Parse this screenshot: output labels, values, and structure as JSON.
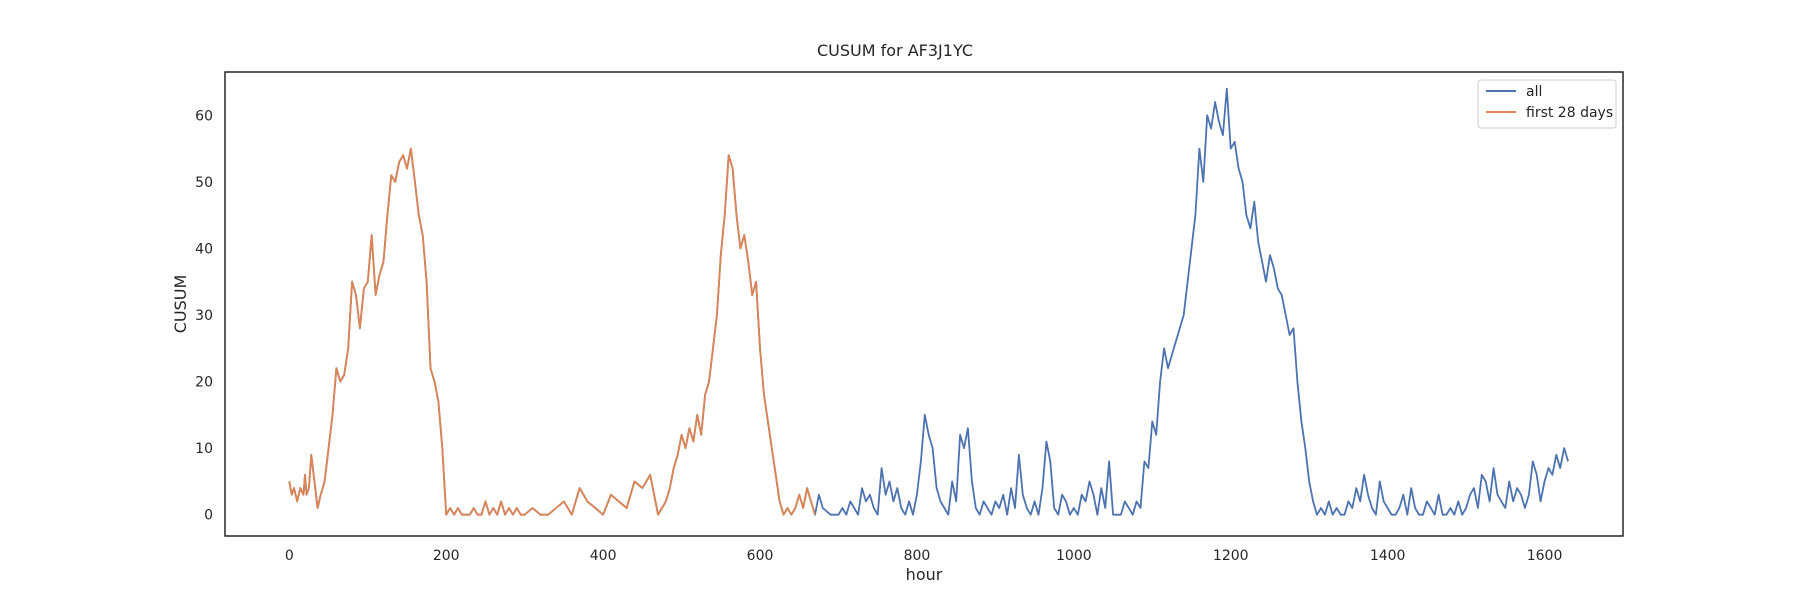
{
  "chart_data": {
    "type": "line",
    "title": "CUSUM for AF3J1YC",
    "xlabel": "hour",
    "ylabel": "CUSUM",
    "xlim": [
      -82,
      1700
    ],
    "ylim": [
      -3.2,
      66.5
    ],
    "xticks": [
      0,
      200,
      400,
      600,
      800,
      1000,
      1200,
      1400,
      1600
    ],
    "yticks": [
      0,
      10,
      20,
      30,
      40,
      50,
      60
    ],
    "grid": false,
    "legend": {
      "location": "top-right"
    },
    "series": [
      {
        "name": "all",
        "color": "#4c72b0",
        "x": [
          0,
          3,
          6,
          10,
          14,
          18,
          20,
          22,
          25,
          28,
          32,
          36,
          40,
          45,
          50,
          55,
          60,
          65,
          70,
          75,
          80,
          85,
          90,
          95,
          100,
          105,
          110,
          115,
          120,
          125,
          130,
          135,
          140,
          145,
          150,
          155,
          160,
          165,
          170,
          175,
          180,
          185,
          190,
          195,
          200,
          205,
          210,
          215,
          220,
          225,
          230,
          235,
          240,
          245,
          250,
          255,
          260,
          265,
          270,
          275,
          280,
          285,
          290,
          295,
          300,
          310,
          320,
          330,
          340,
          350,
          360,
          370,
          380,
          390,
          400,
          410,
          420,
          430,
          440,
          450,
          460,
          465,
          470,
          475,
          480,
          485,
          490,
          495,
          500,
          505,
          510,
          515,
          520,
          525,
          530,
          535,
          540,
          545,
          550,
          555,
          560,
          565,
          570,
          575,
          580,
          585,
          590,
          595,
          600,
          605,
          610,
          615,
          620,
          625,
          630,
          635,
          640,
          645,
          650,
          655,
          660,
          665,
          670,
          675,
          680,
          690,
          700,
          705,
          710,
          715,
          720,
          725,
          730,
          735,
          740,
          745,
          750,
          755,
          760,
          765,
          770,
          775,
          780,
          785,
          790,
          795,
          800,
          805,
          810,
          815,
          820,
          825,
          830,
          835,
          840,
          845,
          850,
          855,
          860,
          865,
          870,
          875,
          880,
          885,
          890,
          895,
          900,
          905,
          910,
          915,
          920,
          925,
          930,
          935,
          940,
          945,
          950,
          955,
          960,
          965,
          970,
          975,
          980,
          985,
          990,
          995,
          1000,
          1005,
          1010,
          1015,
          1020,
          1025,
          1030,
          1035,
          1040,
          1045,
          1050,
          1055,
          1060,
          1065,
          1070,
          1075,
          1080,
          1085,
          1090,
          1095,
          1100,
          1105,
          1110,
          1115,
          1120,
          1125,
          1130,
          1135,
          1140,
          1145,
          1150,
          1155,
          1160,
          1165,
          1170,
          1175,
          1180,
          1185,
          1190,
          1195,
          1200,
          1205,
          1210,
          1215,
          1220,
          1225,
          1230,
          1235,
          1240,
          1245,
          1250,
          1255,
          1260,
          1265,
          1270,
          1275,
          1280,
          1285,
          1290,
          1295,
          1300,
          1305,
          1310,
          1315,
          1320,
          1325,
          1330,
          1335,
          1340,
          1345,
          1350,
          1355,
          1360,
          1365,
          1370,
          1375,
          1380,
          1385,
          1390,
          1395,
          1400,
          1405,
          1410,
          1415,
          1420,
          1425,
          1430,
          1435,
          1440,
          1445,
          1450,
          1455,
          1460,
          1465,
          1470,
          1475,
          1480,
          1485,
          1490,
          1495,
          1500,
          1505,
          1510,
          1515,
          1520,
          1525,
          1530,
          1535,
          1540,
          1545,
          1550,
          1555,
          1560,
          1565,
          1570,
          1575,
          1580,
          1585,
          1590,
          1595,
          1600,
          1605,
          1610,
          1615,
          1620,
          1625,
          1630
        ],
        "y": [
          5,
          3,
          4,
          2,
          4,
          3,
          6,
          3,
          4,
          9,
          5,
          1,
          3,
          5,
          10,
          15,
          22,
          20,
          21,
          25,
          35,
          33,
          28,
          34,
          35,
          42,
          33,
          36,
          38,
          45,
          51,
          50,
          53,
          54,
          52,
          55,
          50,
          45,
          42,
          35,
          22,
          20,
          17,
          10,
          0,
          1,
          0,
          1,
          0,
          0,
          0,
          1,
          0,
          0,
          2,
          0,
          1,
          0,
          2,
          0,
          1,
          0,
          1,
          0,
          0,
          1,
          0,
          0,
          1,
          2,
          0,
          4,
          2,
          1,
          0,
          3,
          2,
          1,
          5,
          4,
          6,
          3,
          0,
          1,
          2,
          4,
          7,
          9,
          12,
          10,
          13,
          11,
          15,
          12,
          18,
          20,
          25,
          30,
          39,
          45,
          54,
          52,
          45,
          40,
          42,
          38,
          33,
          35,
          25,
          18,
          14,
          10,
          6,
          2,
          0,
          1,
          0,
          1,
          3,
          1,
          4,
          2,
          0,
          3,
          1,
          0,
          0,
          1,
          0,
          2,
          1,
          0,
          4,
          2,
          3,
          1,
          0,
          7,
          3,
          5,
          2,
          4,
          1,
          0,
          2,
          0,
          3,
          8,
          15,
          12,
          10,
          4,
          2,
          1,
          0,
          5,
          2,
          12,
          10,
          13,
          5,
          1,
          0,
          2,
          1,
          0,
          2,
          1,
          3,
          0,
          4,
          1,
          9,
          3,
          1,
          0,
          2,
          0,
          4,
          11,
          8,
          1,
          0,
          3,
          2,
          0,
          1,
          0,
          3,
          2,
          5,
          3,
          0,
          4,
          1,
          8,
          0,
          0,
          0,
          2,
          1,
          0,
          2,
          1,
          8,
          7,
          14,
          12,
          20,
          25,
          22,
          24,
          26,
          28,
          30,
          35,
          40,
          45,
          55,
          50,
          60,
          58,
          62,
          59,
          57,
          64,
          55,
          56,
          52,
          50,
          45,
          43,
          47,
          41,
          38,
          35,
          39,
          37,
          34,
          33,
          30,
          27,
          28,
          20,
          14,
          10,
          5,
          2,
          0,
          1,
          0,
          2,
          0,
          1,
          0,
          0,
          2,
          1,
          4,
          2,
          6,
          3,
          1,
          0,
          5,
          2,
          1,
          0,
          0,
          1,
          3,
          0,
          4,
          1,
          0,
          0,
          2,
          1,
          0,
          3,
          0,
          0,
          1,
          0,
          2,
          0,
          1,
          3,
          4,
          1,
          6,
          5,
          2,
          7,
          3,
          2,
          1,
          5,
          2,
          4,
          3,
          1,
          3,
          8,
          6,
          2,
          5,
          7,
          6,
          9,
          7,
          10,
          8
        ]
      },
      {
        "name": "first 28 days",
        "color": "#dd8452",
        "x": [
          0,
          3,
          6,
          10,
          14,
          18,
          20,
          22,
          25,
          28,
          32,
          36,
          40,
          45,
          50,
          55,
          60,
          65,
          70,
          75,
          80,
          85,
          90,
          95,
          100,
          105,
          110,
          115,
          120,
          125,
          130,
          135,
          140,
          145,
          150,
          155,
          160,
          165,
          170,
          175,
          180,
          185,
          190,
          195,
          200,
          205,
          210,
          215,
          220,
          225,
          230,
          235,
          240,
          245,
          250,
          255,
          260,
          265,
          270,
          275,
          280,
          285,
          290,
          295,
          300,
          310,
          320,
          330,
          340,
          350,
          360,
          370,
          380,
          390,
          400,
          410,
          420,
          430,
          440,
          450,
          460,
          465,
          470,
          475,
          480,
          485,
          490,
          495,
          500,
          505,
          510,
          515,
          520,
          525,
          530,
          535,
          540,
          545,
          550,
          555,
          560,
          565,
          570,
          575,
          580,
          585,
          590,
          595,
          600,
          605,
          610,
          615,
          620,
          625,
          630,
          635,
          640,
          645,
          650,
          655,
          660,
          665,
          670
        ],
        "y": [
          5,
          3,
          4,
          2,
          4,
          3,
          6,
          3,
          4,
          9,
          5,
          1,
          3,
          5,
          10,
          15,
          22,
          20,
          21,
          25,
          35,
          33,
          28,
          34,
          35,
          42,
          33,
          36,
          38,
          45,
          51,
          50,
          53,
          54,
          52,
          55,
          50,
          45,
          42,
          35,
          22,
          20,
          17,
          10,
          0,
          1,
          0,
          1,
          0,
          0,
          0,
          1,
          0,
          0,
          2,
          0,
          1,
          0,
          2,
          0,
          1,
          0,
          1,
          0,
          0,
          1,
          0,
          0,
          1,
          2,
          0,
          4,
          2,
          1,
          0,
          3,
          2,
          1,
          5,
          4,
          6,
          3,
          0,
          1,
          2,
          4,
          7,
          9,
          12,
          10,
          13,
          11,
          15,
          12,
          18,
          20,
          25,
          30,
          39,
          45,
          54,
          52,
          45,
          40,
          42,
          38,
          33,
          35,
          25,
          18,
          14,
          10,
          6,
          2,
          0,
          1,
          0,
          1,
          3,
          1,
          4,
          2,
          0
        ]
      }
    ]
  }
}
